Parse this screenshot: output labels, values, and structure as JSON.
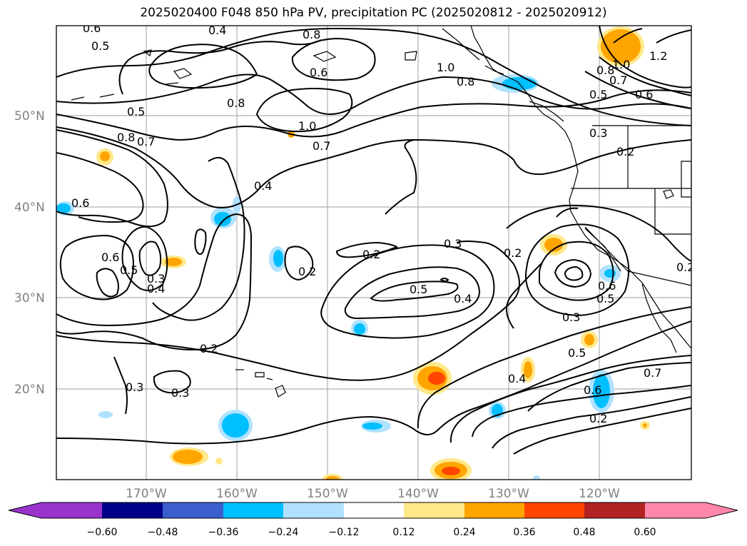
{
  "title": "2025020400 F048 850 hPa PV, precipitation PC (2025020812 - 2025020912)",
  "lat_labels": [
    "50°N",
    "40°N",
    "30°N",
    "20°N"
  ],
  "lon_labels": [
    "170°W",
    "160°W",
    "150°W",
    "140°W",
    "130°W",
    "120°W"
  ],
  "colorbar": {
    "ticks": [
      "−0.60",
      "−0.48",
      "−0.36",
      "−0.24",
      "−0.12",
      "0.12",
      "0.24",
      "0.36",
      "0.48",
      "0.60"
    ],
    "colors": [
      "#9933cc",
      "#00008b",
      "#3a5fcd",
      "#00bfff",
      "#b0e2ff",
      "#ffffff",
      "#ffe88a",
      "#ffa500",
      "#ff4500",
      "#b22222",
      "#ff88aa"
    ]
  },
  "contour_labels": [
    {
      "text": "0.6"
    },
    {
      "text": "0.5"
    },
    {
      "text": "0.4"
    },
    {
      "text": "0.8"
    },
    {
      "text": "0.6"
    },
    {
      "text": "1.0"
    },
    {
      "text": "0.8"
    },
    {
      "text": "0.8"
    },
    {
      "text": "1.0"
    },
    {
      "text": "0.7"
    },
    {
      "text": "0.5"
    },
    {
      "text": "0.8"
    },
    {
      "text": "0.7"
    },
    {
      "text": "0.4"
    },
    {
      "text": "0.6"
    },
    {
      "text": "1.0"
    },
    {
      "text": "1.2"
    },
    {
      "text": "0.8"
    },
    {
      "text": "0.7"
    },
    {
      "text": "0.5"
    },
    {
      "text": "0.6"
    },
    {
      "text": "0.3"
    },
    {
      "text": "0.2"
    },
    {
      "text": "0.6"
    },
    {
      "text": "0.5"
    },
    {
      "text": "0.3"
    },
    {
      "text": "0.4"
    },
    {
      "text": "0.2"
    },
    {
      "text": "0.2"
    },
    {
      "text": "0.3"
    },
    {
      "text": "0.2"
    },
    {
      "text": "0.5"
    },
    {
      "text": "0.4"
    },
    {
      "text": "0.3"
    },
    {
      "text": "0.6"
    },
    {
      "text": "0.5"
    },
    {
      "text": "0.2"
    },
    {
      "text": "0.3"
    },
    {
      "text": "0.5"
    },
    {
      "text": "0.4"
    },
    {
      "text": "0.7"
    },
    {
      "text": "0.6"
    },
    {
      "text": "0.2"
    },
    {
      "text": "0.2"
    },
    {
      "text": "0.3"
    }
  ]
}
